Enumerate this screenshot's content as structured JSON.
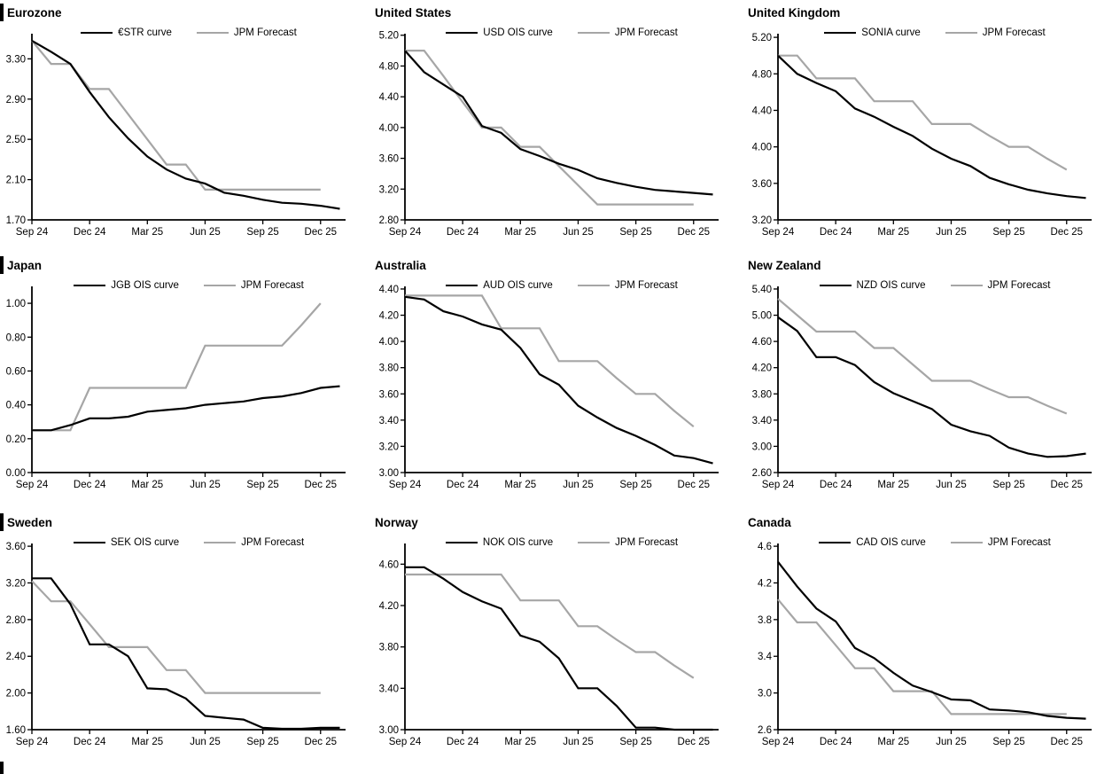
{
  "chart_data": [
    {
      "region": "Eurozone",
      "type": "line",
      "title_marker_bar": true,
      "x_tick_labels": [
        "Sep 24",
        "Dec 24",
        "Mar 25",
        "Jun 25",
        "Sep 25",
        "Dec 25"
      ],
      "y_ticks": [
        "1.70",
        "2.10",
        "2.50",
        "2.90",
        "3.30"
      ],
      "y_min": 1.7,
      "y_axis_top": 3.55,
      "series": [
        {
          "name": "€STR curve",
          "color": "#000000",
          "values": [
            3.48,
            3.37,
            3.25,
            2.97,
            2.72,
            2.51,
            2.33,
            2.2,
            2.11,
            2.06,
            1.97,
            1.94,
            1.9,
            1.87,
            1.86,
            1.84,
            1.81
          ]
        },
        {
          "name": "JPM Forecast",
          "color": "#a6a6a6",
          "values": [
            3.48,
            3.25,
            3.25,
            3.0,
            3.0,
            2.75,
            2.5,
            2.25,
            2.25,
            2.0,
            2.0,
            2.0,
            2.0,
            2.0,
            2.0,
            2.0,
            null
          ]
        }
      ]
    },
    {
      "region": "United States",
      "type": "line",
      "title_marker_bar": false,
      "x_tick_labels": [
        "Sep 24",
        "Dec 24",
        "Mar 25",
        "Jun 25",
        "Sep 25",
        "Dec 25"
      ],
      "y_ticks": [
        "2.80",
        "3.20",
        "3.60",
        "4.00",
        "4.40",
        "4.80",
        "5.20"
      ],
      "y_min": 2.8,
      "y_axis_top": 5.22,
      "series": [
        {
          "name": "USD OIS curve",
          "color": "#000000",
          "values": [
            5.0,
            4.72,
            4.56,
            4.4,
            4.02,
            3.93,
            3.72,
            3.63,
            3.53,
            3.45,
            3.34,
            3.28,
            3.23,
            3.19,
            3.17,
            3.15,
            3.13
          ]
        },
        {
          "name": "JPM Forecast",
          "color": "#a6a6a6",
          "values": [
            5.0,
            5.0,
            4.67,
            4.33,
            4.0,
            4.0,
            3.75,
            3.75,
            3.5,
            3.25,
            3.0,
            3.0,
            3.0,
            3.0,
            3.0,
            3.0,
            null
          ]
        }
      ]
    },
    {
      "region": "United Kingdom",
      "type": "line",
      "title_marker_bar": false,
      "x_tick_labels": [
        "Sep 24",
        "Dec 24",
        "Mar 25",
        "Jun 25",
        "Sep 25",
        "Dec 25"
      ],
      "y_ticks": [
        "3.20",
        "3.60",
        "4.00",
        "4.40",
        "4.80",
        "5.20"
      ],
      "y_min": 3.2,
      "y_axis_top": 5.24,
      "series": [
        {
          "name": "SONIA curve",
          "color": "#000000",
          "values": [
            5.0,
            4.8,
            4.7,
            4.61,
            4.42,
            4.33,
            4.22,
            4.12,
            3.98,
            3.87,
            3.79,
            3.66,
            3.59,
            3.53,
            3.49,
            3.46,
            3.44
          ]
        },
        {
          "name": "JPM Forecast",
          "color": "#a6a6a6",
          "values": [
            5.0,
            5.0,
            4.75,
            4.75,
            4.75,
            4.5,
            4.5,
            4.5,
            4.25,
            4.25,
            4.25,
            4.12,
            4.0,
            4.0,
            3.87,
            3.75,
            null
          ]
        }
      ]
    },
    {
      "region": "Japan",
      "type": "line",
      "title_marker_bar": true,
      "x_tick_labels": [
        "Sep 24",
        "Dec 24",
        "Mar 25",
        "Jun 25",
        "Sep 25",
        "Dec 25"
      ],
      "y_ticks": [
        "0.00",
        "0.20",
        "0.40",
        "0.60",
        "0.80",
        "1.00"
      ],
      "y_min": 0.0,
      "y_axis_top": 1.1,
      "series": [
        {
          "name": "JGB OIS curve",
          "color": "#000000",
          "values": [
            0.25,
            0.25,
            0.28,
            0.32,
            0.32,
            0.33,
            0.36,
            0.37,
            0.38,
            0.4,
            0.41,
            0.42,
            0.44,
            0.45,
            0.47,
            0.5,
            0.51
          ]
        },
        {
          "name": "JPM Forecast",
          "color": "#a6a6a6",
          "values": [
            0.25,
            0.25,
            0.25,
            0.5,
            0.5,
            0.5,
            0.5,
            0.5,
            0.5,
            0.75,
            0.75,
            0.75,
            0.75,
            0.75,
            0.87,
            1.0,
            null
          ]
        }
      ]
    },
    {
      "region": "Australia",
      "type": "line",
      "title_marker_bar": false,
      "x_tick_labels": [
        "Sep 24",
        "Dec 24",
        "Mar 25",
        "Jun 25",
        "Sep 25",
        "Dec 25"
      ],
      "y_ticks": [
        "3.00",
        "3.20",
        "3.40",
        "3.60",
        "3.80",
        "4.00",
        "4.20",
        "4.40"
      ],
      "y_min": 3.0,
      "y_axis_top": 4.42,
      "series": [
        {
          "name": "AUD OIS curve",
          "color": "#000000",
          "values": [
            4.34,
            4.32,
            4.23,
            4.19,
            4.13,
            4.09,
            3.95,
            3.75,
            3.67,
            3.51,
            3.42,
            3.34,
            3.28,
            3.21,
            3.13,
            3.11,
            3.07
          ]
        },
        {
          "name": "JPM Forecast",
          "color": "#a6a6a6",
          "values": [
            4.35,
            4.35,
            4.35,
            4.35,
            4.35,
            4.1,
            4.1,
            4.1,
            3.85,
            3.85,
            3.85,
            3.72,
            3.6,
            3.6,
            3.47,
            3.35,
            null
          ]
        }
      ]
    },
    {
      "region": "New Zealand",
      "type": "line",
      "title_marker_bar": false,
      "x_tick_labels": [
        "Sep 24",
        "Dec 24",
        "Mar 25",
        "Jun 25",
        "Sep 25",
        "Dec 25"
      ],
      "y_ticks": [
        "2.60",
        "3.00",
        "3.40",
        "3.80",
        "4.20",
        "4.60",
        "5.00",
        "5.40"
      ],
      "y_min": 2.6,
      "y_axis_top": 5.44,
      "series": [
        {
          "name": "NZD OIS curve",
          "color": "#000000",
          "values": [
            4.97,
            4.76,
            4.36,
            4.36,
            4.24,
            3.98,
            3.81,
            3.69,
            3.57,
            3.33,
            3.23,
            3.16,
            2.98,
            2.89,
            2.84,
            2.85,
            2.89
          ]
        },
        {
          "name": "JPM Forecast",
          "color": "#a6a6a6",
          "values": [
            5.25,
            5.0,
            4.75,
            4.75,
            4.75,
            4.5,
            4.5,
            4.25,
            4.0,
            4.0,
            4.0,
            3.87,
            3.75,
            3.75,
            3.62,
            3.5,
            null
          ]
        }
      ]
    },
    {
      "region": "Sweden",
      "type": "line",
      "title_marker_bar": true,
      "x_tick_labels": [
        "Sep 24",
        "Dec 24",
        "Mar 25",
        "Jun 25",
        "Sep 25",
        "Dec 25"
      ],
      "y_ticks": [
        "1.60",
        "2.00",
        "2.40",
        "2.80",
        "3.20",
        "3.60"
      ],
      "y_min": 1.6,
      "y_axis_top": 3.63,
      "series": [
        {
          "name": "SEK OIS curve",
          "color": "#000000",
          "values": [
            3.25,
            3.25,
            2.97,
            2.53,
            2.53,
            2.4,
            2.05,
            2.04,
            1.94,
            1.75,
            1.73,
            1.71,
            1.62,
            1.61,
            1.61,
            1.62,
            1.62
          ]
        },
        {
          "name": "JPM Forecast",
          "color": "#a6a6a6",
          "values": [
            3.22,
            3.0,
            3.0,
            2.75,
            2.5,
            2.5,
            2.5,
            2.25,
            2.25,
            2.0,
            2.0,
            2.0,
            2.0,
            2.0,
            2.0,
            2.0,
            null
          ]
        }
      ]
    },
    {
      "region": "Norway",
      "type": "line",
      "title_marker_bar": false,
      "x_tick_labels": [
        "Sep 24",
        "Dec 24",
        "Mar 25",
        "Jun 25",
        "Sep 25",
        "Dec 25"
      ],
      "y_ticks": [
        "3.00",
        "3.40",
        "3.80",
        "4.20",
        "4.60"
      ],
      "y_min": 3.0,
      "y_axis_top": 4.8,
      "series": [
        {
          "name": "NOK OIS curve",
          "color": "#000000",
          "values": [
            4.57,
            4.57,
            4.46,
            4.33,
            4.24,
            4.17,
            3.91,
            3.85,
            3.69,
            3.4,
            3.4,
            3.23,
            3.02,
            3.02,
            3.0,
            3.0,
            3.0
          ]
        },
        {
          "name": "JPM Forecast",
          "color": "#a6a6a6",
          "values": [
            4.5,
            4.5,
            4.5,
            4.5,
            4.5,
            4.5,
            4.25,
            4.25,
            4.25,
            4.0,
            4.0,
            3.87,
            3.75,
            3.75,
            3.62,
            3.5,
            null
          ]
        }
      ]
    },
    {
      "region": "Canada",
      "type": "line",
      "title_marker_bar": false,
      "x_tick_labels": [
        "Sep 24",
        "Dec 24",
        "Mar 25",
        "Jun 25",
        "Sep 25",
        "Dec 25"
      ],
      "y_ticks": [
        "2.6",
        "3.0",
        "3.4",
        "3.8",
        "4.2",
        "4.6"
      ],
      "y_min": 2.6,
      "y_axis_top": 4.63,
      "series": [
        {
          "name": "CAD OIS curve",
          "color": "#000000",
          "values": [
            4.43,
            4.16,
            3.92,
            3.78,
            3.49,
            3.38,
            3.22,
            3.08,
            3.01,
            2.93,
            2.92,
            2.82,
            2.81,
            2.79,
            2.75,
            2.73,
            2.72
          ]
        },
        {
          "name": "JPM Forecast",
          "color": "#a6a6a6",
          "values": [
            4.02,
            3.77,
            3.77,
            3.52,
            3.27,
            3.27,
            3.02,
            3.02,
            3.02,
            2.77,
            2.77,
            2.77,
            2.77,
            2.77,
            2.77,
            2.77,
            null
          ]
        }
      ]
    }
  ]
}
